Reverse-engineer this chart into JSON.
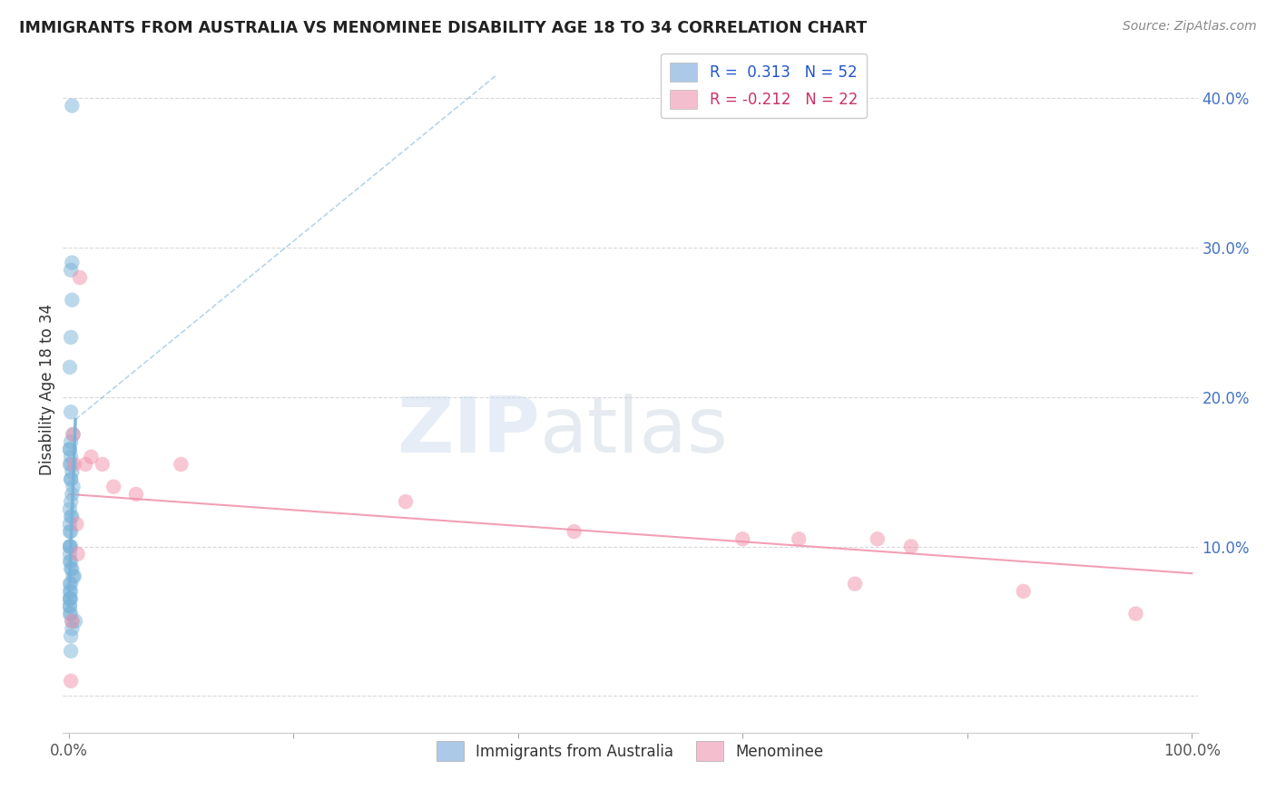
{
  "title": "IMMIGRANTS FROM AUSTRALIA VS MENOMINEE DISABILITY AGE 18 TO 34 CORRELATION CHART",
  "source": "Source: ZipAtlas.com",
  "ylabel": "Disability Age 18 to 34",
  "yticks": [
    0.0,
    0.1,
    0.2,
    0.3,
    0.4
  ],
  "ytick_labels": [
    "",
    "10.0%",
    "20.0%",
    "30.0%",
    "40.0%"
  ],
  "xlim": [
    -0.005,
    1.005
  ],
  "ylim": [
    -0.025,
    0.435
  ],
  "R_blue": 0.313,
  "N_blue": 52,
  "R_pink": -0.212,
  "N_pink": 22,
  "blue_color": "#7ab3d9",
  "pink_color": "#f090a8",
  "blue_legend_color": "#adc9e8",
  "pink_legend_color": "#f4bece",
  "blue_scatter_x": [
    0.003,
    0.003,
    0.002,
    0.003,
    0.002,
    0.001,
    0.002,
    0.004,
    0.002,
    0.001,
    0.001,
    0.002,
    0.001,
    0.002,
    0.003,
    0.002,
    0.002,
    0.004,
    0.003,
    0.002,
    0.001,
    0.002,
    0.003,
    0.001,
    0.002,
    0.001,
    0.001,
    0.002,
    0.001,
    0.001,
    0.001,
    0.002,
    0.002,
    0.003,
    0.004,
    0.005,
    0.002,
    0.001,
    0.001,
    0.002,
    0.001,
    0.001,
    0.002,
    0.001,
    0.001,
    0.001,
    0.002,
    0.003,
    0.006,
    0.003,
    0.002,
    0.002
  ],
  "blue_scatter_y": [
    0.395,
    0.29,
    0.285,
    0.265,
    0.24,
    0.22,
    0.19,
    0.175,
    0.17,
    0.165,
    0.165,
    0.16,
    0.155,
    0.155,
    0.15,
    0.145,
    0.145,
    0.14,
    0.135,
    0.13,
    0.125,
    0.12,
    0.12,
    0.115,
    0.11,
    0.11,
    0.1,
    0.1,
    0.1,
    0.095,
    0.09,
    0.09,
    0.085,
    0.085,
    0.08,
    0.08,
    0.075,
    0.075,
    0.07,
    0.07,
    0.065,
    0.065,
    0.065,
    0.06,
    0.06,
    0.055,
    0.055,
    0.05,
    0.05,
    0.045,
    0.04,
    0.03
  ],
  "pink_scatter_x": [
    0.002,
    0.003,
    0.004,
    0.005,
    0.007,
    0.008,
    0.01,
    0.015,
    0.02,
    0.03,
    0.04,
    0.06,
    0.1,
    0.3,
    0.45,
    0.6,
    0.65,
    0.7,
    0.72,
    0.75,
    0.85,
    0.95
  ],
  "pink_scatter_y": [
    0.01,
    0.05,
    0.175,
    0.155,
    0.115,
    0.095,
    0.28,
    0.155,
    0.16,
    0.155,
    0.14,
    0.135,
    0.155,
    0.13,
    0.11,
    0.105,
    0.105,
    0.075,
    0.105,
    0.1,
    0.07,
    0.055
  ],
  "blue_trend_x0": 0.0,
  "blue_trend_y0": 0.06,
  "blue_trend_x1": 0.006,
  "blue_trend_y1": 0.185,
  "blue_trend_ext_x1": 0.38,
  "blue_trend_ext_y1": 0.415,
  "pink_trend_x0": 0.0,
  "pink_trend_y0": 0.135,
  "pink_trend_x1": 1.0,
  "pink_trend_y1": 0.082,
  "watermark_zip": "ZIP",
  "watermark_atlas": "atlas",
  "background_color": "#ffffff",
  "grid_color": "#d8d8d8",
  "tick_color": "#4472c4",
  "legend_blue_text": "R =  0.313   N = 52",
  "legend_pink_text": "R = -0.212   N = 22",
  "legend_label_blue": "Immigrants from Australia",
  "legend_label_pink": "Menominee"
}
